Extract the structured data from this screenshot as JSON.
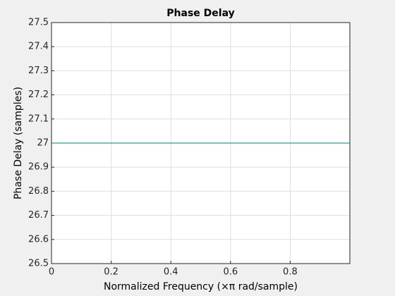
{
  "chart_data": {
    "type": "line",
    "title": "Phase Delay",
    "xlabel": "Normalized Frequency (×π rad/sample)",
    "ylabel": "Phase Delay (samples)",
    "x": [
      0,
      1
    ],
    "series": [
      {
        "name": "Phase Delay",
        "color": "#0b7a6b",
        "values": [
          27,
          27
        ]
      }
    ],
    "xlim": [
      0,
      1
    ],
    "xticks": [
      0,
      0.2,
      0.4,
      0.6,
      0.8
    ],
    "ylim": [
      26.5,
      27.5
    ],
    "yticks": [
      26.5,
      26.6,
      26.7,
      26.8,
      26.9,
      27,
      27.1,
      27.2,
      27.3,
      27.4,
      27.5
    ],
    "grid": true
  }
}
